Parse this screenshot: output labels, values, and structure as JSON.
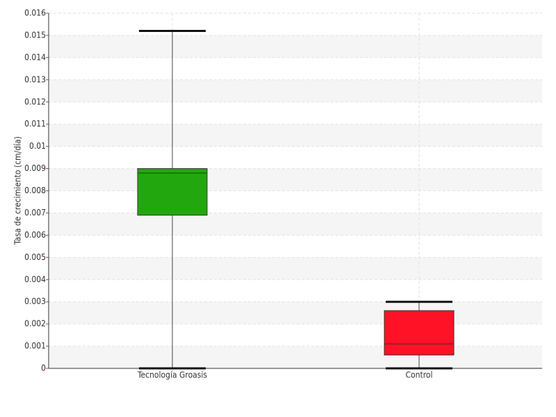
{
  "chart_data": {
    "type": "box",
    "y_label": "Tasa de crecimiento (cm/día)",
    "categories": [
      "Tecnología Groasis",
      "Control"
    ],
    "boxes": [
      {
        "whisker_low": 0,
        "q1": 0.0069,
        "median": 0.0088,
        "q3": 0.009,
        "whisker_high": 0.0152,
        "color": "#22a80e"
      },
      {
        "whisker_low": 0,
        "q1": 0.0006,
        "median": 0.0011,
        "q3": 0.0026,
        "whisker_high": 0.003,
        "color": "#ff1226"
      }
    ],
    "ylim": [
      0,
      0.016
    ],
    "yticks": [
      0,
      0.001,
      0.002,
      0.003,
      0.004,
      0.005,
      0.006,
      0.007,
      0.008,
      0.009,
      0.01,
      0.011,
      0.012,
      0.013,
      0.014,
      0.015,
      0.016
    ],
    "grid": true
  }
}
